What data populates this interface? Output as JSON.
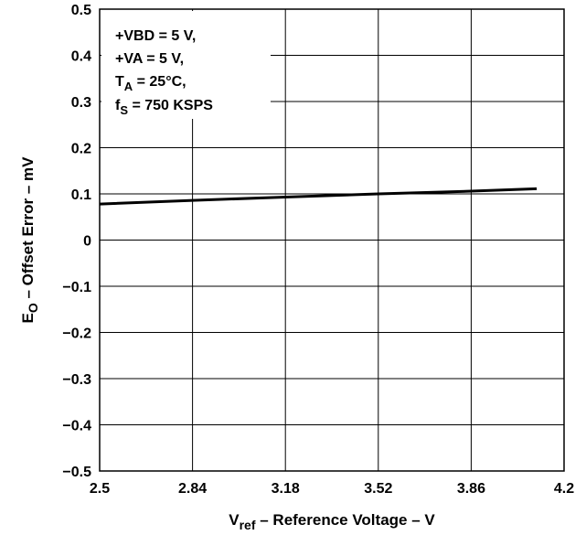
{
  "chart_data": {
    "type": "line",
    "x": [
      2.5,
      2.84,
      3.18,
      3.52,
      3.86,
      4.1
    ],
    "series": [
      {
        "values": [
          0.078,
          0.086,
          0.093,
          0.1,
          0.106,
          0.111
        ]
      }
    ],
    "xlim": [
      2.5,
      4.2
    ],
    "ylim": [
      -0.5,
      0.5
    ],
    "xticks": [
      "2.5",
      "2.84",
      "3.18",
      "3.52",
      "3.86",
      "4.2"
    ],
    "yticks": [
      "0.5",
      "0.4",
      "0.3",
      "0.2",
      "0.1",
      "0",
      "−0.1",
      "−0.2",
      "−0.3",
      "−0.4",
      "−0.5"
    ],
    "xlabel": {
      "main": "V",
      "sub": "ref",
      "rest": " – Reference Voltage – V"
    },
    "ylabel": {
      "main": "E",
      "sub": "O",
      "rest": " – Offset Error – mV"
    },
    "annotations": [
      {
        "main": "+VBD = 5 V,",
        "sub": "",
        "rest": ""
      },
      {
        "main": "+VA = 5 V,",
        "sub": "",
        "rest": ""
      },
      {
        "main": "T",
        "sub": "A",
        "rest": " = 25°C,"
      },
      {
        "main": "f",
        "sub": "S",
        "rest": " = 750 KSPS"
      }
    ],
    "grid": true,
    "line_color": "#000000"
  }
}
